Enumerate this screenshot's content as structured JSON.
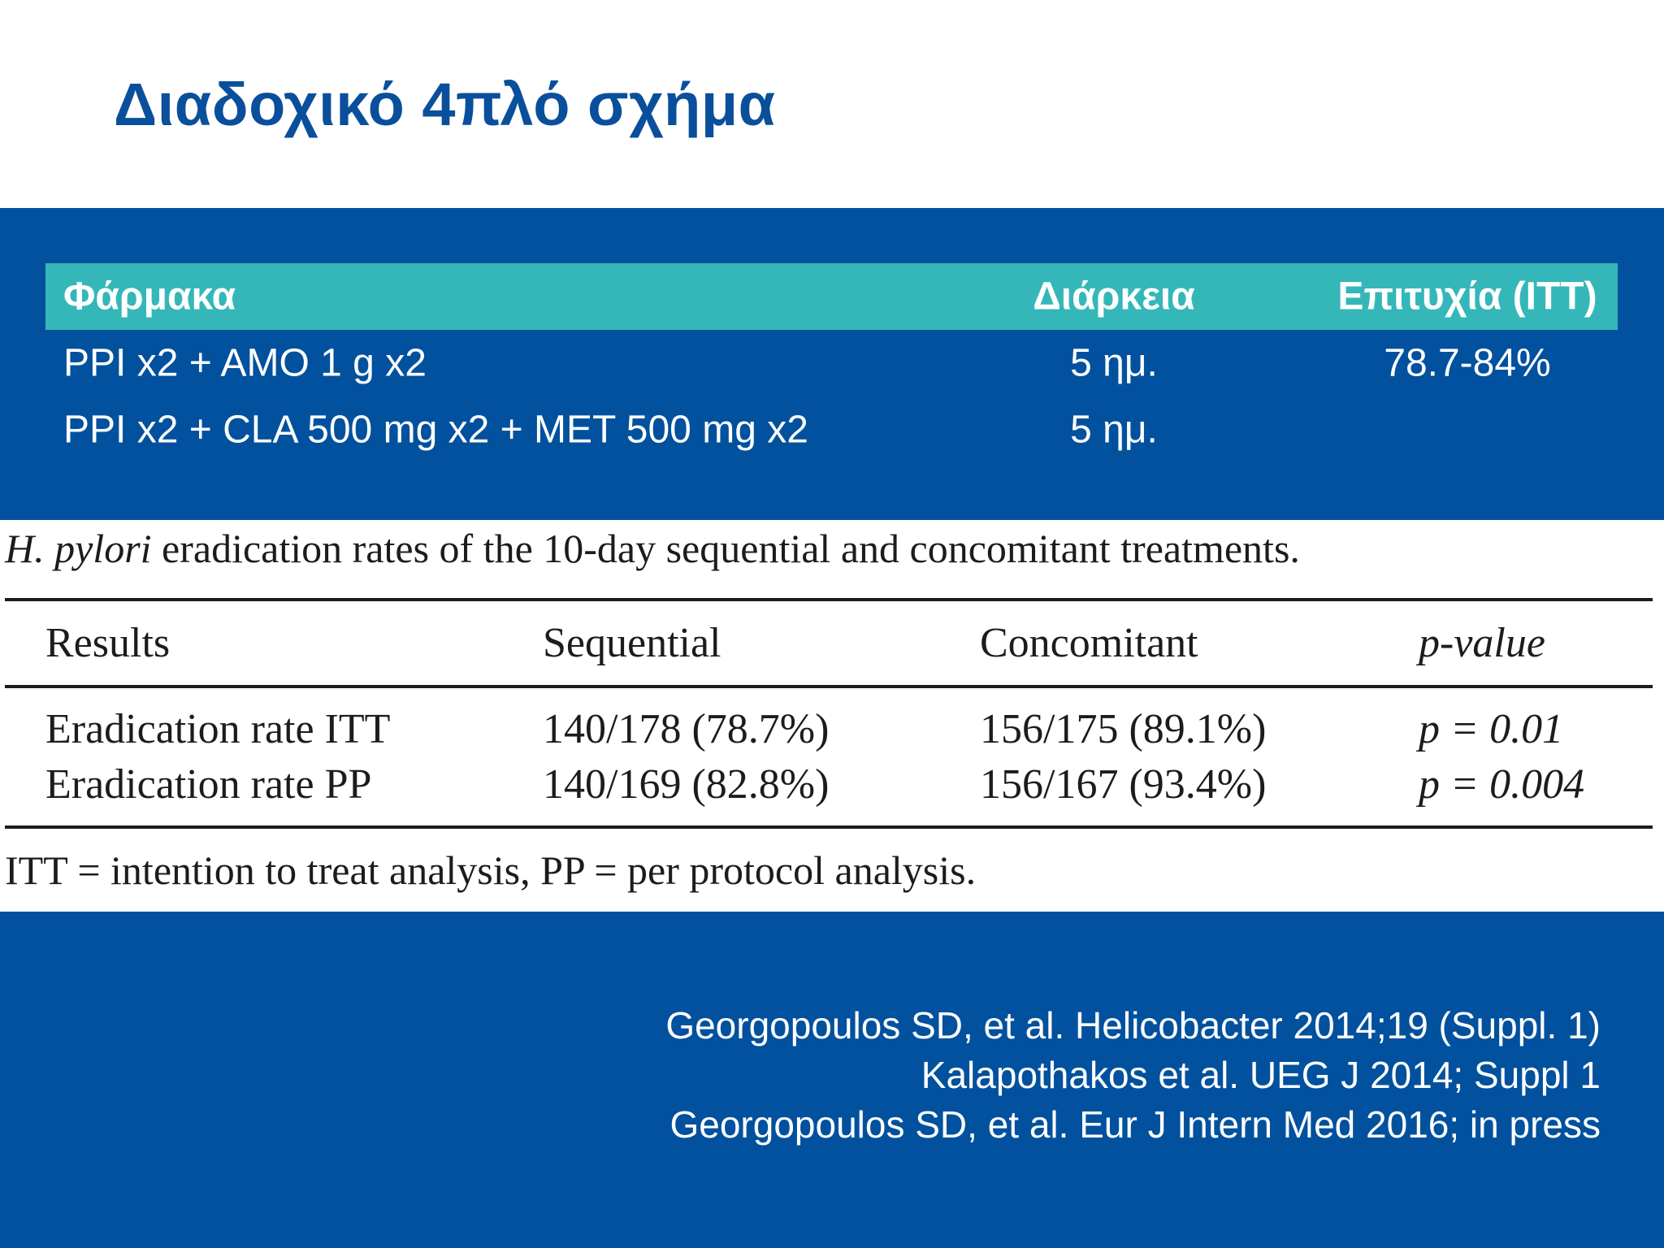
{
  "title": "Διαδοχικό 4πλό σχήμα",
  "drug_table": {
    "headers": [
      "Φάρμακα",
      "Διάρκεια",
      "Επιτυχία (ITT)"
    ],
    "rows": [
      [
        "PPI x2 + AMO 1 g x2",
        "5 ημ.",
        "78.7-84%"
      ],
      [
        "PPI x2 + CLA 500 mg x2 + MET 500 mg x2",
        "5 ημ.",
        ""
      ]
    ]
  },
  "paper_table": {
    "caption_italic": "H. pylori",
    "caption_rest": " eradication rates of the 10-day sequential and concomitant treatments.",
    "headers": [
      "Results",
      "Sequential",
      "Concomitant",
      "p-value"
    ],
    "rows": [
      [
        "Eradication rate ITT",
        "140/178 (78.7%)",
        "156/175 (89.1%)",
        "p = 0.01"
      ],
      [
        "Eradication rate PP",
        "140/169 (82.8%)",
        "156/167 (93.4%)",
        "p = 0.004"
      ]
    ],
    "footnote": "ITT = intention to treat analysis, PP = per protocol analysis."
  },
  "references": [
    "Georgopoulos SD, et al. Helicobacter 2014;19 (Suppl. 1)",
    "Kalapothakos et al. UEG J 2014; Suppl 1",
    "Georgopoulos SD, et al. Eur J Intern Med 2016; in press"
  ],
  "colors": {
    "title": "#0a4f9b",
    "band": "#01519e",
    "header_teal": "#35b7b9"
  }
}
